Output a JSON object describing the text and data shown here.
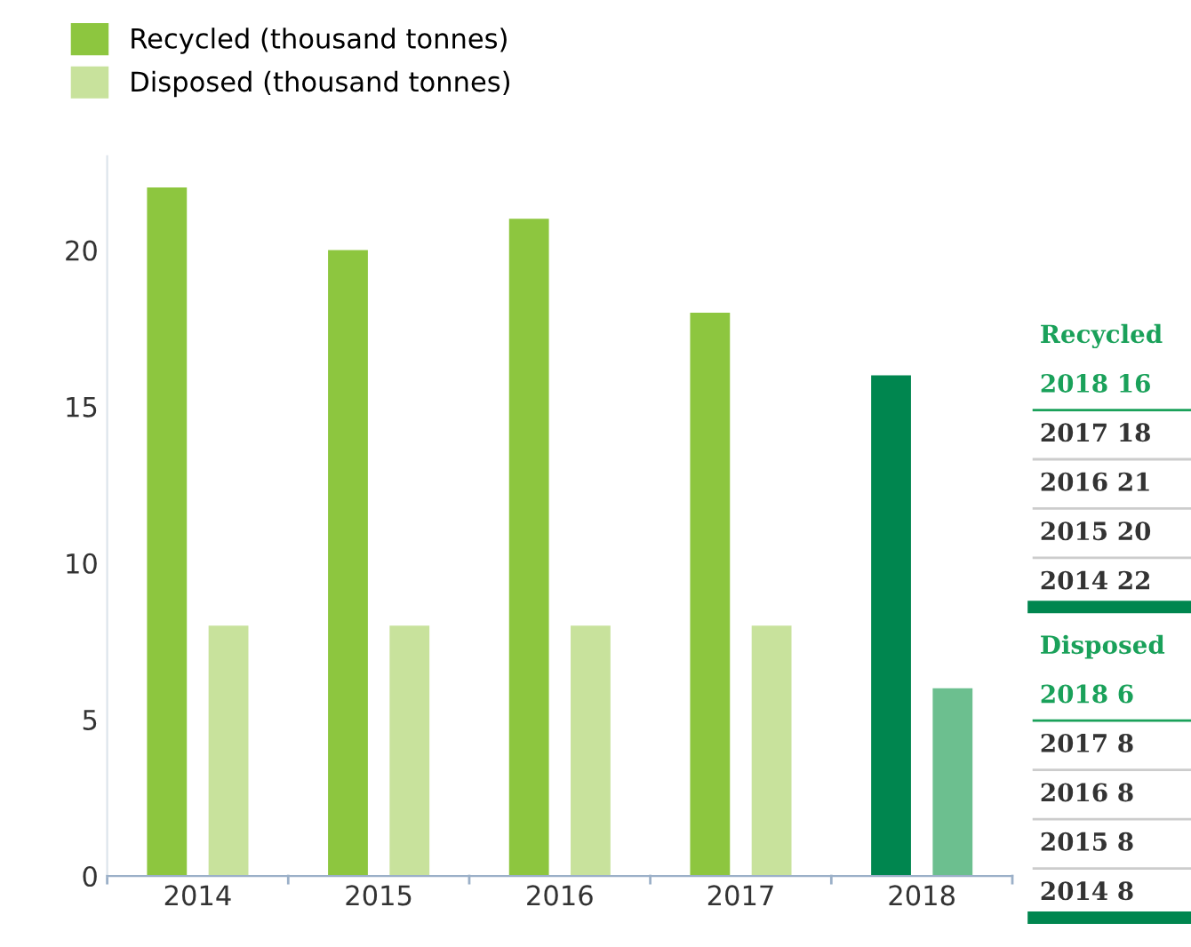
{
  "chart_data": {
    "type": "bar",
    "categories": [
      "2014",
      "2015",
      "2016",
      "2017",
      "2018"
    ],
    "series": [
      {
        "name": "Recycled (thousand tonnes)",
        "color": "#8dc63f",
        "colors": [
          "#8dc63f",
          "#8dc63f",
          "#8dc63f",
          "#8dc63f",
          "#00864f"
        ],
        "values": [
          22,
          20,
          21,
          18,
          16
        ]
      },
      {
        "name": "Disposed (thousand tonnes)",
        "color": "#c8e29c",
        "colors": [
          "#c8e29c",
          "#c8e29c",
          "#c8e29c",
          "#c8e29c",
          "#6cbf8f"
        ],
        "values": [
          8,
          8,
          8,
          8,
          6
        ]
      }
    ],
    "annotations": [
      "Recycled",
      "2018 16",
      "2017 18",
      "2016 21",
      "2015 20",
      "2014 22",
      "Disposed",
      "2018 6",
      "2017 8",
      "2016 8",
      "2015 8",
      "2014 8"
    ],
    "ylim": [
      0,
      23
    ],
    "yticks": [
      0,
      5,
      10,
      15,
      20
    ],
    "grid": false,
    "legend": "top left"
  }
}
